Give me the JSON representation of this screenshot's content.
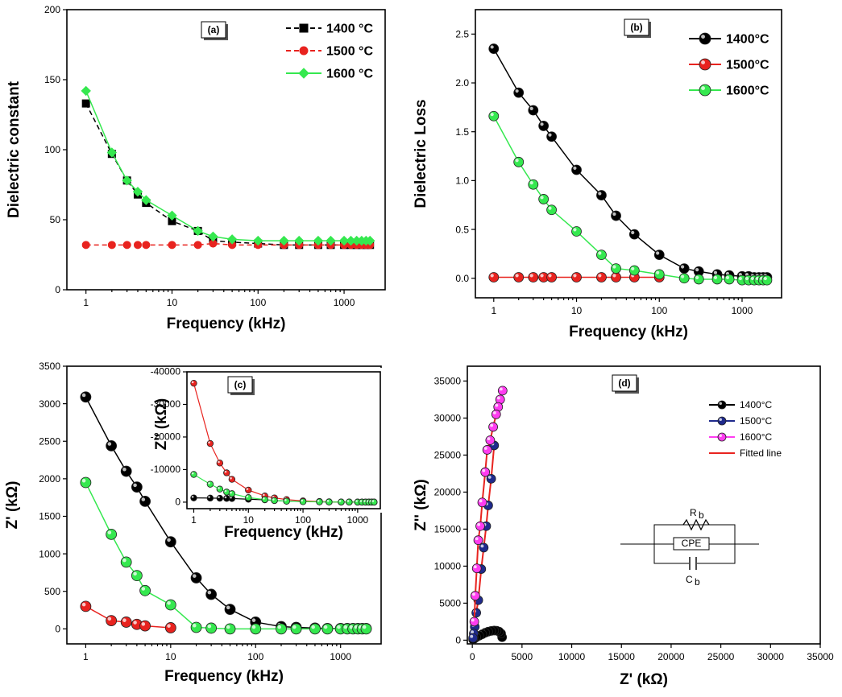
{
  "chart_data": [
    {
      "panel": "(a)",
      "type": "line",
      "xlabel": "Frequency (kHz)",
      "ylabel": "Dielectric constant",
      "xscale": "log",
      "xlim": [
        0.6,
        3000
      ],
      "ylim": [
        0,
        200
      ],
      "xticks": [
        1,
        10,
        100,
        1000
      ],
      "xtick_labels": [
        "1",
        "10",
        "100",
        "1000"
      ],
      "yticks": [
        0,
        50,
        100,
        150,
        200
      ],
      "ytick_labels": [
        "0",
        "50",
        "100",
        "150",
        "200"
      ],
      "legend_position": "top-right",
      "series": [
        {
          "name": "1400 °C",
          "color": "#000000",
          "marker": "square",
          "dashed": true,
          "x": [
            1,
            2,
            3,
            4,
            5,
            10,
            20,
            30,
            50,
            100,
            200,
            300,
            500,
            700,
            1000,
            1200,
            1400,
            1600,
            1800,
            2000
          ],
          "y": [
            133,
            97,
            78,
            68,
            62,
            49,
            42,
            35,
            34,
            33,
            32,
            32,
            32,
            32,
            32,
            32,
            32,
            32,
            32,
            32
          ]
        },
        {
          "name": "1500 °C",
          "color": "#e8231f",
          "marker": "circle",
          "dashed": true,
          "x": [
            1,
            2,
            3,
            4,
            5,
            10,
            20,
            30,
            50,
            100,
            200,
            300,
            500,
            700,
            1000,
            1200,
            1400,
            1600,
            1800,
            2000
          ],
          "y": [
            32,
            32,
            32,
            32,
            32,
            32,
            32,
            33,
            32,
            32,
            32,
            32,
            32,
            32,
            32,
            32,
            32,
            32,
            32,
            32
          ]
        },
        {
          "name": "1600 °C",
          "color": "#35e84f",
          "marker": "diamond",
          "dashed": false,
          "x": [
            1,
            2,
            3,
            4,
            5,
            10,
            20,
            30,
            50,
            100,
            200,
            300,
            500,
            700,
            1000,
            1200,
            1400,
            1600,
            1800,
            2000
          ],
          "y": [
            142,
            98,
            78,
            70,
            64,
            53,
            42,
            38,
            36,
            35,
            35,
            35,
            35,
            35,
            35,
            35,
            35,
            35,
            35,
            35
          ]
        }
      ]
    },
    {
      "panel": "(b)",
      "type": "line",
      "xlabel": "Frequency (kHz)",
      "ylabel": "Dielectric Loss",
      "xscale": "log",
      "xlim": [
        0.6,
        3000
      ],
      "ylim": [
        -0.2,
        2.75
      ],
      "xticks": [
        1,
        10,
        100,
        1000
      ],
      "xtick_labels": [
        "1",
        "10",
        "100",
        "1000"
      ],
      "yticks": [
        0,
        0.5,
        1,
        1.5,
        2,
        2.5
      ],
      "ytick_labels": [
        "0.0",
        "0.5",
        "1.0",
        "1.5",
        "2.0",
        "2.5"
      ],
      "legend_position": "top-right",
      "series": [
        {
          "name": "1400°C",
          "color": "#000000",
          "marker": "circle",
          "x": [
            1,
            2,
            3,
            4,
            5,
            10,
            20,
            30,
            50,
            100,
            200,
            300,
            500,
            700,
            1000,
            1200,
            1400,
            1600,
            1800,
            2000
          ],
          "y": [
            2.35,
            1.9,
            1.72,
            1.56,
            1.45,
            1.11,
            0.85,
            0.64,
            0.45,
            0.24,
            0.1,
            0.07,
            0.04,
            0.03,
            0.02,
            0.02,
            0.01,
            0.01,
            0.01,
            0.01
          ]
        },
        {
          "name": "1500°C",
          "color": "#e8231f",
          "marker": "circle",
          "x": [
            1,
            2,
            3,
            4,
            5,
            10,
            20,
            30,
            50,
            100
          ],
          "y": [
            0.01,
            0.01,
            0.01,
            0.01,
            0.01,
            0.01,
            0.01,
            0.01,
            0.01,
            0.01
          ]
        },
        {
          "name": "1600°C",
          "color": "#35e84f",
          "marker": "circle",
          "x": [
            1,
            2,
            3,
            4,
            5,
            10,
            20,
            30,
            50,
            100,
            200,
            300,
            500,
            700,
            1000,
            1200,
            1400,
            1600,
            1800,
            2000
          ],
          "y": [
            1.66,
            1.19,
            0.96,
            0.81,
            0.7,
            0.48,
            0.24,
            0.1,
            0.08,
            0.04,
            0.0,
            -0.01,
            -0.01,
            -0.01,
            -0.02,
            -0.02,
            -0.02,
            -0.02,
            -0.02,
            -0.02
          ]
        }
      ]
    },
    {
      "panel": "(c)",
      "type": "line",
      "xlabel": "Frequency (kHz)",
      "ylabel": "Z' (kΩ)",
      "xscale": "log",
      "xlim": [
        0.6,
        3000
      ],
      "ylim": [
        -200,
        3500
      ],
      "xticks": [
        1,
        10,
        100,
        1000
      ],
      "xtick_labels": [
        "1",
        "10",
        "100",
        "1000"
      ],
      "yticks": [
        0,
        500,
        1000,
        1500,
        2000,
        2500,
        3000,
        3500
      ],
      "ytick_labels": [
        "0",
        "500",
        "1000",
        "1500",
        "2000",
        "2500",
        "3000",
        "3500"
      ],
      "legend_position": "top-right",
      "series": [
        {
          "name": "1400°C",
          "color": "#000000",
          "marker": "circle",
          "x": [
            1,
            2,
            3,
            4,
            5,
            10,
            20,
            30,
            50,
            100,
            200,
            300,
            500,
            700,
            1000,
            1200,
            1400,
            1600,
            1800,
            2000
          ],
          "y": [
            3090,
            2440,
            2100,
            1890,
            1700,
            1160,
            680,
            460,
            260,
            90,
            30,
            20,
            10,
            5,
            5,
            5,
            5,
            5,
            5,
            5
          ]
        },
        {
          "name": "1500°C",
          "color": "#e8231f",
          "marker": "circle",
          "x": [
            1,
            2,
            3,
            4,
            5,
            10
          ],
          "y": [
            300,
            110,
            90,
            60,
            40,
            15
          ]
        },
        {
          "name": "1600°C",
          "color": "#35e84f",
          "marker": "circle",
          "x": [
            1,
            2,
            3,
            4,
            5,
            10,
            20,
            30,
            50,
            100,
            200,
            300,
            500,
            700,
            1000,
            1200,
            1400,
            1600,
            1800,
            2000
          ],
          "y": [
            1950,
            1260,
            890,
            710,
            510,
            320,
            20,
            10,
            0,
            0,
            0,
            0,
            0,
            0,
            0,
            0,
            0,
            0,
            0,
            0
          ]
        }
      ],
      "inset": {
        "xlabel": "Frequency (kHz)",
        "ylabel": "Z'' (kΩ)",
        "xscale": "log",
        "xlim": [
          0.75,
          2600
        ],
        "ylim": [
          2000,
          -40000
        ],
        "xticks": [
          1,
          10,
          100,
          1000
        ],
        "xtick_labels": [
          "1",
          "10",
          "100",
          "1000"
        ],
        "yticks": [
          0,
          -10000,
          -20000,
          -30000,
          -40000
        ],
        "ytick_labels": [
          "0",
          "-10000",
          "-20000",
          "-30000",
          "-40000"
        ],
        "series": [
          {
            "name": "1400°C",
            "color": "#000000",
            "x": [
              1,
              2,
              3,
              4,
              5,
              10,
              20,
              30,
              50,
              100,
              200,
              300,
              500,
              700,
              1000,
              1200,
              1400,
              1600,
              1800,
              2000
            ],
            "y": [
              -1300,
              -1250,
              -1200,
              -1150,
              -1100,
              -900,
              -700,
              -500,
              -300,
              -200,
              -100,
              -50,
              -30,
              -20,
              -10,
              -10,
              -10,
              -10,
              -10,
              -10
            ]
          },
          {
            "name": "1500°C",
            "color": "#e8231f",
            "x": [
              1,
              2,
              3,
              4,
              5,
              10,
              20,
              30,
              50,
              100,
              200,
              300,
              500,
              700,
              1000,
              1200,
              1400,
              1600,
              1800,
              2000
            ],
            "y": [
              -36500,
              -18000,
              -12000,
              -9000,
              -7000,
              -3700,
              -1900,
              -1300,
              -800,
              -400,
              -200,
              -100,
              -60,
              -40,
              -30,
              -20,
              -20,
              -20,
              -20,
              -20
            ]
          },
          {
            "name": "1600°C",
            "color": "#35e84f",
            "x": [
              1,
              2,
              3,
              4,
              5,
              10,
              20,
              30,
              50,
              100,
              200,
              300,
              500,
              700,
              1000,
              1200,
              1400,
              1600,
              1800,
              2000
            ],
            "y": [
              -8500,
              -5500,
              -4000,
              -3100,
              -2600,
              -1400,
              -800,
              -500,
              -300,
              -150,
              -80,
              -50,
              -30,
              -20,
              -10,
              -10,
              -10,
              -10,
              -10,
              -10
            ]
          }
        ]
      }
    },
    {
      "panel": "(d)",
      "type": "scatter",
      "xlabel": "Z' (kΩ)",
      "ylabel": "Z'' (kΩ)",
      "xlim": [
        -500,
        35000
      ],
      "ylim": [
        -500,
        37000
      ],
      "xticks": [
        0,
        5000,
        10000,
        15000,
        20000,
        25000,
        30000,
        35000
      ],
      "xtick_labels": [
        "0",
        "5000",
        "10000",
        "15000",
        "20000",
        "25000",
        "30000",
        "35000"
      ],
      "yticks": [
        0,
        5000,
        10000,
        15000,
        20000,
        25000,
        30000,
        35000
      ],
      "ytick_labels": [
        "0",
        "5000",
        "10000",
        "15000",
        "20000",
        "25000",
        "30000",
        "35000"
      ],
      "legend_position": "top-right",
      "series": [
        {
          "name": "1400°C",
          "color": "#000000",
          "x": [
            3000,
            2900,
            2700,
            2450,
            2200,
            1900,
            1600,
            1300,
            1000,
            700,
            400,
            200,
            80
          ],
          "y": [
            400,
            900,
            1150,
            1280,
            1300,
            1250,
            1150,
            1000,
            800,
            600,
            400,
            200,
            80
          ]
        },
        {
          "name": "1500°C",
          "color": "#1f2a8c",
          "x": [
            2200,
            1900,
            1600,
            1400,
            1150,
            900,
            600,
            400,
            250,
            150,
            80
          ],
          "y": [
            26300,
            21800,
            18200,
            15400,
            12500,
            9600,
            5400,
            3700,
            1800,
            900,
            300
          ]
        },
        {
          "name": "1600°C",
          "color": "#ff3cf0",
          "x": [
            3050,
            2800,
            2600,
            2400,
            2100,
            1800,
            1500,
            1300,
            1000,
            800,
            600,
            450,
            300,
            200
          ],
          "y": [
            33700,
            32500,
            31500,
            30500,
            28800,
            27000,
            25700,
            22700,
            18600,
            15400,
            13500,
            9700,
            6000,
            2500
          ]
        },
        {
          "name": "Fitted line",
          "color": "#e8231f",
          "line_only": true
        }
      ],
      "circuit": {
        "R_label": "R",
        "R_sub": "b",
        "C_label": "C",
        "C_sub": "b",
        "CPE_label": "CPE"
      }
    }
  ]
}
